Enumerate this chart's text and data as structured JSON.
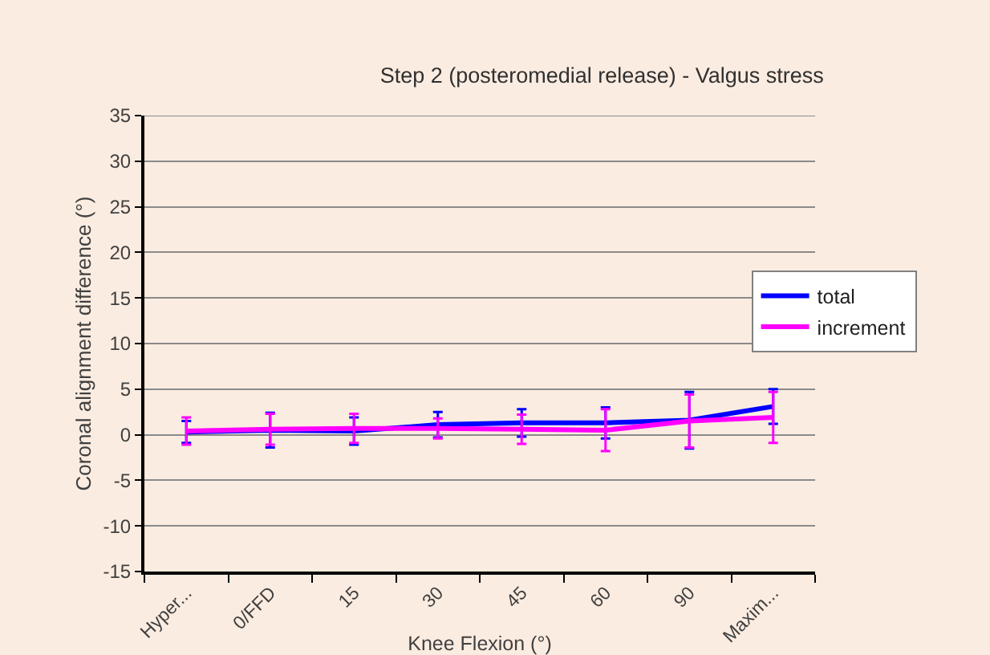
{
  "chart_data": {
    "type": "line",
    "title": "Step 2 (posteromedial release) - Valgus stress",
    "xlabel": "Knee Flexion (°)",
    "ylabel": "Coronal alignment difference (°)",
    "categories": [
      "Hyper...",
      "0/FFD",
      "15",
      "30",
      "45",
      "60",
      "90",
      "Maxim..."
    ],
    "series": [
      {
        "name": "total",
        "color": "#0000ff",
        "values": [
          0.3,
          0.5,
          0.4,
          1.1,
          1.3,
          1.3,
          1.6,
          3.1
        ],
        "errors": [
          1.2,
          1.9,
          1.5,
          1.4,
          1.5,
          1.7,
          3.1,
          1.9
        ]
      },
      {
        "name": "increment",
        "color": "#ff00ff",
        "values": [
          0.4,
          0.6,
          0.7,
          0.7,
          0.6,
          0.5,
          1.5,
          1.9
        ],
        "errors": [
          1.5,
          1.7,
          1.6,
          1.1,
          1.6,
          2.3,
          2.9,
          2.8
        ]
      }
    ],
    "ylim": [
      -15,
      35
    ],
    "yticks": [
      -15,
      -10,
      -5,
      0,
      5,
      10,
      15,
      20,
      25,
      30,
      35
    ],
    "grid": "y",
    "legend": "right"
  }
}
